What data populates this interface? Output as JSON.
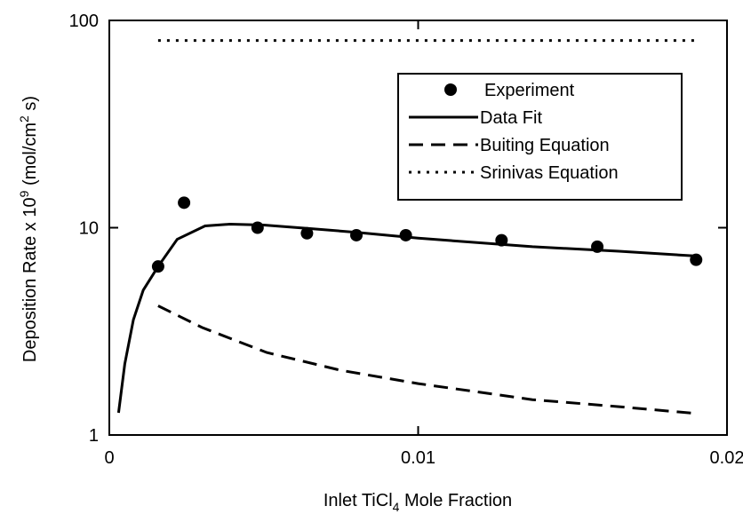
{
  "chart_data": {
    "type": "line",
    "x_label": [
      "Inlet TiCl",
      "4",
      " Mole Fraction"
    ],
    "y_label": [
      "Deposition Rate x 10",
      "9",
      " (mol/cm",
      "2",
      " s)"
    ],
    "xlim": [
      0,
      0.02
    ],
    "xticks": [
      0,
      0.01,
      0.02
    ],
    "ylim": [
      1,
      100
    ],
    "yticks": [
      1,
      10,
      100
    ],
    "log_y": true,
    "legend": "upper right",
    "series": [
      {
        "name": "Experiment",
        "style": "marker",
        "color": "#000000",
        "x": [
          0.00158,
          0.00242,
          0.0048,
          0.0064,
          0.008,
          0.0096,
          0.0127,
          0.0158,
          0.019
        ],
        "values": [
          6.5,
          13.2,
          10,
          9.4,
          9.2,
          9.2,
          8.7,
          8.1,
          7.0
        ]
      },
      {
        "name": "Data Fit",
        "style": "solid",
        "color": "#000000",
        "x": [
          0.0003,
          0.0005,
          0.00078,
          0.0011,
          0.00158,
          0.0022,
          0.0031,
          0.0039,
          0.005,
          0.0065,
          0.008,
          0.01,
          0.0137,
          0.0165,
          0.019
        ],
        "values": [
          1.28,
          2.2,
          3.6,
          5.0,
          6.5,
          8.8,
          10.2,
          10.4,
          10.3,
          9.9,
          9.5,
          8.9,
          8.1,
          7.7,
          7.3
        ]
      },
      {
        "name": "Buiting Equation",
        "style": "dashed",
        "color": "#000000",
        "x": [
          0.00158,
          0.003,
          0.0051,
          0.0075,
          0.01,
          0.0137,
          0.0165,
          0.019
        ],
        "values": [
          4.2,
          3.3,
          2.5,
          2.05,
          1.77,
          1.48,
          1.37,
          1.27
        ]
      },
      {
        "name": "Srinivas Equation",
        "style": "dotted",
        "color": "#000000",
        "x": [
          0.00158,
          0.019
        ],
        "values": [
          80,
          80
        ]
      }
    ]
  }
}
